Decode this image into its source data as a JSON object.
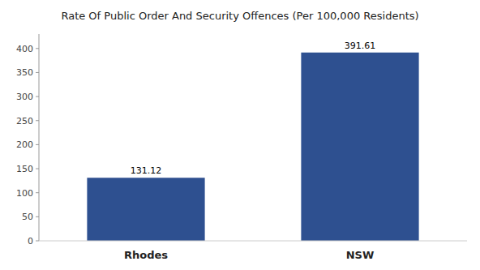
{
  "chart_data": {
    "type": "bar",
    "title": "Rate Of Public Order And Security Offences (Per 100,000 Residents)",
    "categories": [
      "Rhodes",
      "NSW"
    ],
    "values": [
      131.12,
      391.61
    ],
    "color": "#2e5090",
    "ylim": [
      0,
      430
    ],
    "yticks": [
      0,
      50,
      100,
      150,
      200,
      250,
      300,
      350,
      400
    ],
    "grid": false,
    "data_labels": true
  }
}
